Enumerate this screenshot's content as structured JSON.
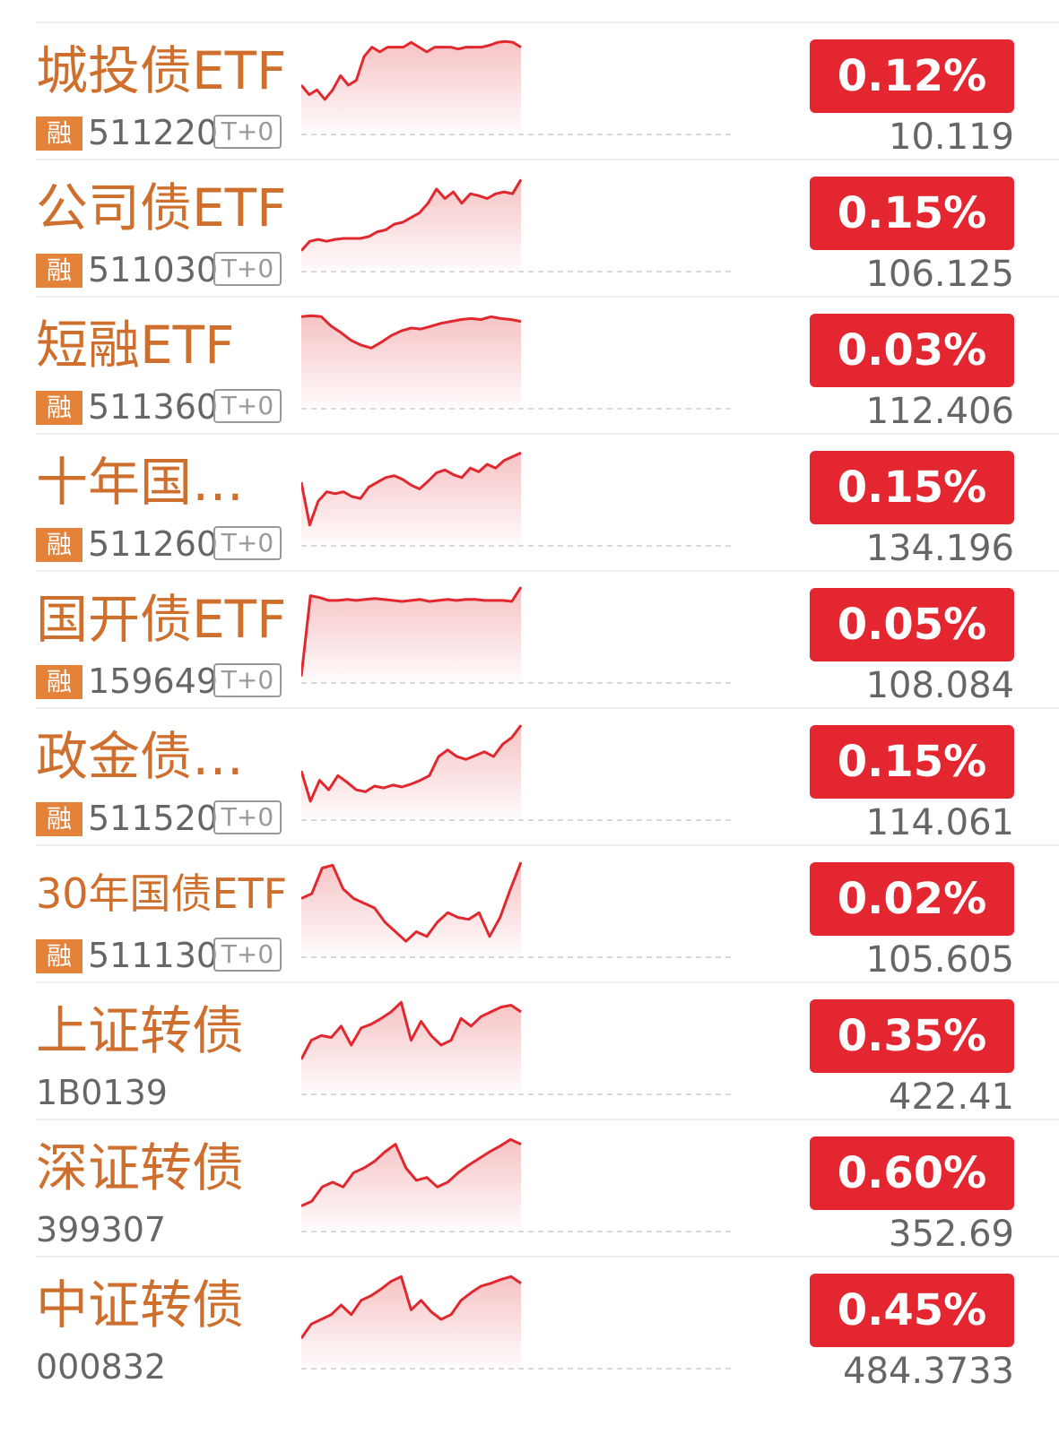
{
  "colors": {
    "name": "#cf6f2e",
    "badge": "#e4823a",
    "up": "#e3262f",
    "line": "#e0282e"
  },
  "items": [
    {
      "name": "城投债ETF",
      "code": "511220",
      "rong": "融",
      "t0": "T+0",
      "change": "0.12%",
      "price": "10.119",
      "icon": "sparkline-chart",
      "spark": [
        0.5,
        0.4,
        0.45,
        0.35,
        0.45,
        0.6,
        0.5,
        0.55,
        0.8,
        0.9,
        0.85,
        0.9,
        0.9,
        0.9,
        0.95,
        0.9,
        0.85,
        0.9,
        0.9,
        0.9,
        0.88,
        0.9,
        0.9,
        0.9,
        0.92,
        0.95,
        0.96,
        0.95,
        0.9
      ]
    },
    {
      "name": "公司债ETF",
      "code": "511030",
      "rong": "融",
      "t0": "T+0",
      "change": "0.15%",
      "price": "106.125",
      "icon": "sparkline-chart",
      "spark": [
        0.2,
        0.3,
        0.32,
        0.3,
        0.32,
        0.33,
        0.33,
        0.33,
        0.35,
        0.4,
        0.42,
        0.48,
        0.5,
        0.55,
        0.6,
        0.7,
        0.85,
        0.75,
        0.82,
        0.7,
        0.8,
        0.78,
        0.75,
        0.8,
        0.82,
        0.8,
        0.95
      ]
    },
    {
      "name": "短融ETF",
      "code": "511360",
      "rong": "融",
      "t0": "T+0",
      "change": "0.03%",
      "price": "112.406",
      "icon": "sparkline-chart",
      "spark": [
        0.95,
        0.96,
        0.95,
        0.85,
        0.78,
        0.7,
        0.65,
        0.62,
        0.68,
        0.75,
        0.8,
        0.83,
        0.82,
        0.85,
        0.88,
        0.9,
        0.92,
        0.93,
        0.92,
        0.95,
        0.93,
        0.92,
        0.9
      ]
    },
    {
      "name": "十年国债ETF",
      "code": "511260",
      "rong": "融",
      "t0": "T+0",
      "change": "0.15%",
      "price": "134.196",
      "icon": "sparkline-chart",
      "spark": [
        0.65,
        0.2,
        0.45,
        0.55,
        0.53,
        0.55,
        0.5,
        0.48,
        0.6,
        0.65,
        0.7,
        0.72,
        0.68,
        0.62,
        0.58,
        0.66,
        0.75,
        0.78,
        0.73,
        0.7,
        0.8,
        0.76,
        0.84,
        0.8,
        0.88,
        0.92,
        0.96
      ]
    },
    {
      "name": "国开债ETF",
      "code": "159649",
      "rong": "融",
      "t0": "T+0",
      "change": "0.05%",
      "price": "108.084",
      "icon": "sparkline-chart",
      "spark": [
        0.05,
        0.9,
        0.88,
        0.85,
        0.85,
        0.86,
        0.85,
        0.86,
        0.87,
        0.86,
        0.85,
        0.84,
        0.85,
        0.86,
        0.84,
        0.85,
        0.86,
        0.85,
        0.86,
        0.86,
        0.85,
        0.85,
        0.85,
        0.84,
        0.99
      ]
    },
    {
      "name": "政金债券ETF",
      "code": "511520",
      "rong": "融",
      "t0": "T+0",
      "change": "0.15%",
      "price": "114.061",
      "icon": "sparkline-chart",
      "spark": [
        0.5,
        0.18,
        0.4,
        0.3,
        0.45,
        0.38,
        0.3,
        0.28,
        0.34,
        0.32,
        0.35,
        0.33,
        0.36,
        0.4,
        0.45,
        0.65,
        0.72,
        0.65,
        0.62,
        0.66,
        0.7,
        0.65,
        0.78,
        0.85,
        0.98
      ]
    },
    {
      "name": "30年国债ETF",
      "code": "511130",
      "rong": "融",
      "t0": "T+0",
      "change": "0.02%",
      "price": "105.605",
      "icon": "sparkline-chart",
      "spark": [
        0.6,
        0.65,
        0.92,
        0.95,
        0.7,
        0.6,
        0.55,
        0.5,
        0.35,
        0.25,
        0.15,
        0.25,
        0.2,
        0.35,
        0.45,
        0.4,
        0.38,
        0.45,
        0.2,
        0.4,
        0.7,
        0.98
      ]
    },
    {
      "name": "上证转债",
      "code": "1B0139",
      "change": "0.35%",
      "price": "422.41",
      "icon": "sparkline-chart",
      "spark": [
        0.35,
        0.55,
        0.6,
        0.58,
        0.7,
        0.5,
        0.68,
        0.72,
        0.78,
        0.85,
        0.95,
        0.55,
        0.75,
        0.6,
        0.5,
        0.55,
        0.78,
        0.7,
        0.8,
        0.85,
        0.9,
        0.92,
        0.85
      ]
    },
    {
      "name": "深证转债",
      "code": "399307",
      "change": "0.60%",
      "price": "352.69",
      "icon": "sparkline-chart",
      "spark": [
        0.25,
        0.3,
        0.45,
        0.5,
        0.45,
        0.6,
        0.65,
        0.72,
        0.82,
        0.9,
        0.65,
        0.52,
        0.55,
        0.45,
        0.5,
        0.6,
        0.68,
        0.75,
        0.82,
        0.88,
        0.95,
        0.9
      ]
    },
    {
      "name": "中证转债",
      "code": "000832",
      "change": "0.45%",
      "price": "484.3733",
      "icon": "sparkline-chart",
      "spark": [
        0.3,
        0.45,
        0.5,
        0.55,
        0.65,
        0.55,
        0.7,
        0.75,
        0.82,
        0.9,
        0.95,
        0.6,
        0.7,
        0.58,
        0.5,
        0.55,
        0.7,
        0.78,
        0.85,
        0.88,
        0.92,
        0.95,
        0.88
      ]
    }
  ]
}
